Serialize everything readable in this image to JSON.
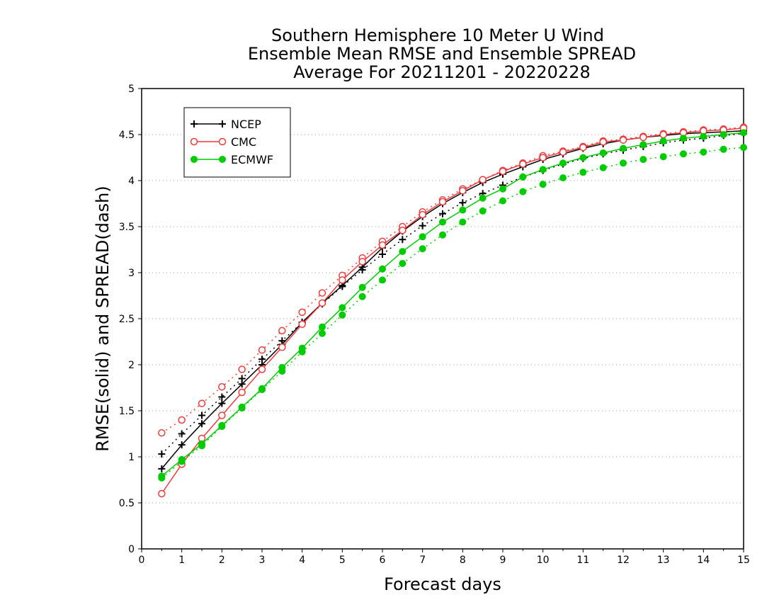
{
  "chart_data": {
    "type": "line",
    "title": [
      "Southern Hemisphere 10 Meter U Wind",
      "Ensemble Mean RMSE and Ensemble SPREAD",
      "Average For 20211201 - 20220228"
    ],
    "xlabel": "Forecast days",
    "ylabel": "RMSE(solid) and SPREAD(dash)",
    "xlim": [
      0,
      15
    ],
    "ylim": [
      0,
      5
    ],
    "xticks": [
      0,
      1,
      2,
      3,
      4,
      5,
      6,
      7,
      8,
      9,
      10,
      11,
      12,
      13,
      14,
      15
    ],
    "yticks": [
      0,
      0.5,
      1,
      1.5,
      2,
      2.5,
      3,
      3.5,
      4,
      4.5,
      5
    ],
    "grid": "horizontal dotted",
    "legend_position": "top-left",
    "x": [
      0.5,
      1,
      1.5,
      2,
      2.5,
      3,
      3.5,
      4,
      4.5,
      5,
      5.5,
      6,
      6.5,
      7,
      7.5,
      8,
      8.5,
      9,
      9.5,
      10,
      10.5,
      11,
      11.5,
      12,
      12.5,
      13,
      13.5,
      14,
      14.5,
      15
    ],
    "series": [
      {
        "name": "NCEP",
        "color": "#000000",
        "marker": "plus",
        "rmse": [
          0.87,
          1.13,
          1.36,
          1.58,
          1.79,
          2.0,
          2.22,
          2.46,
          2.67,
          2.86,
          3.06,
          3.27,
          3.45,
          3.61,
          3.75,
          3.87,
          3.98,
          4.07,
          4.15,
          4.23,
          4.29,
          4.35,
          4.4,
          4.44,
          4.47,
          4.49,
          4.51,
          4.52,
          4.53,
          4.54
        ],
        "spread": [
          1.03,
          1.25,
          1.45,
          1.65,
          1.85,
          2.06,
          2.26,
          2.46,
          2.66,
          2.85,
          3.03,
          3.2,
          3.36,
          3.51,
          3.64,
          3.76,
          3.86,
          3.95,
          4.04,
          4.11,
          4.18,
          4.24,
          4.29,
          4.33,
          4.37,
          4.41,
          4.44,
          4.46,
          4.49,
          4.51
        ]
      },
      {
        "name": "CMC",
        "color": "#ee3b3b",
        "marker": "open-circle",
        "rmse": [
          0.6,
          0.92,
          1.2,
          1.45,
          1.7,
          1.95,
          2.19,
          2.44,
          2.67,
          2.92,
          3.12,
          3.3,
          3.46,
          3.63,
          3.77,
          3.89,
          4.01,
          4.1,
          4.18,
          4.25,
          4.31,
          4.36,
          4.42,
          4.44,
          4.47,
          4.5,
          4.52,
          4.54,
          4.55,
          4.57
        ],
        "spread": [
          1.26,
          1.4,
          1.58,
          1.76,
          1.95,
          2.16,
          2.37,
          2.57,
          2.78,
          2.97,
          3.16,
          3.34,
          3.5,
          3.66,
          3.79,
          3.91,
          4.01,
          4.11,
          4.19,
          4.27,
          4.32,
          4.37,
          4.43,
          4.45,
          4.48,
          4.51,
          4.53,
          4.55,
          4.56,
          4.58
        ]
      },
      {
        "name": "ECMWF",
        "color": "#00cc00",
        "marker": "filled-circle",
        "rmse": [
          0.79,
          0.97,
          1.14,
          1.34,
          1.54,
          1.74,
          1.97,
          2.18,
          2.41,
          2.62,
          2.84,
          3.04,
          3.23,
          3.39,
          3.55,
          3.68,
          3.81,
          3.91,
          4.04,
          4.12,
          4.19,
          4.25,
          4.3,
          4.35,
          4.39,
          4.43,
          4.46,
          4.48,
          4.5,
          4.52
        ],
        "spread": [
          0.77,
          0.95,
          1.12,
          1.33,
          1.53,
          1.73,
          1.93,
          2.14,
          2.34,
          2.54,
          2.74,
          2.92,
          3.1,
          3.26,
          3.41,
          3.55,
          3.67,
          3.78,
          3.88,
          3.96,
          4.03,
          4.09,
          4.14,
          4.19,
          4.23,
          4.26,
          4.29,
          4.31,
          4.34,
          4.36
        ]
      }
    ]
  }
}
